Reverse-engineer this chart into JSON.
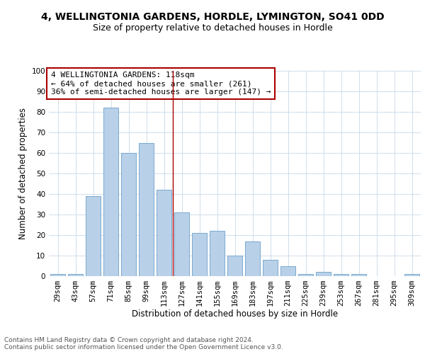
{
  "title1": "4, WELLINGTONIA GARDENS, HORDLE, LYMINGTON, SO41 0DD",
  "title2": "Size of property relative to detached houses in Hordle",
  "xlabel": "Distribution of detached houses by size in Hordle",
  "ylabel": "Number of detached properties",
  "categories": [
    "29sqm",
    "43sqm",
    "57sqm",
    "71sqm",
    "85sqm",
    "99sqm",
    "113sqm",
    "127sqm",
    "141sqm",
    "155sqm",
    "169sqm",
    "183sqm",
    "197sqm",
    "211sqm",
    "225sqm",
    "239sqm",
    "253sqm",
    "267sqm",
    "281sqm",
    "295sqm",
    "309sqm"
  ],
  "values": [
    1,
    1,
    39,
    82,
    60,
    65,
    42,
    31,
    21,
    22,
    10,
    17,
    8,
    5,
    1,
    2,
    1,
    1,
    0,
    0,
    1
  ],
  "bar_color": "#b8d0e8",
  "bar_edge_color": "#7aaad0",
  "vline_color": "#aa0000",
  "annotation_text": "4 WELLINGTONIA GARDENS: 118sqm\n← 64% of detached houses are smaller (261)\n36% of semi-detached houses are larger (147) →",
  "annotation_box_color": "#ffffff",
  "annotation_box_edge_color": "#aa0000",
  "ylim": [
    0,
    100
  ],
  "yticks": [
    0,
    10,
    20,
    30,
    40,
    50,
    60,
    70,
    80,
    90,
    100
  ],
  "grid_color": "#c8d8e8",
  "background_color": "#ffffff",
  "footer_text": "Contains HM Land Registry data © Crown copyright and database right 2024.\nContains public sector information licensed under the Open Government Licence v3.0.",
  "title1_fontsize": 10,
  "title2_fontsize": 9,
  "xlabel_fontsize": 8.5,
  "ylabel_fontsize": 8.5,
  "tick_fontsize": 7.5,
  "annotation_fontsize": 8,
  "footer_fontsize": 6.5
}
